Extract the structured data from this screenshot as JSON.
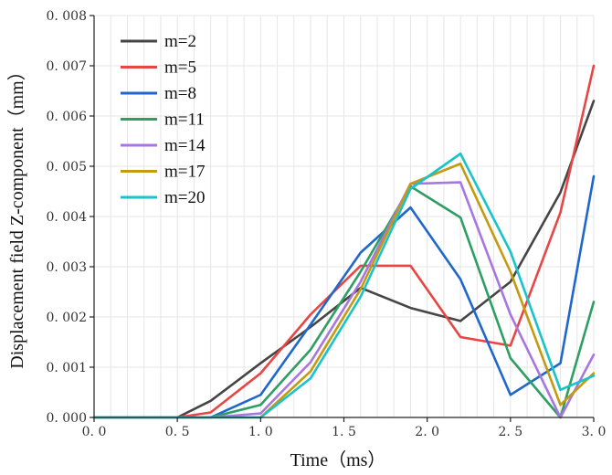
{
  "chart_data": {
    "type": "line",
    "title": "",
    "xlabel": "Time（ms）",
    "ylabel": "Displacement field  Z-component（mm）",
    "xlim": [
      0,
      3
    ],
    "ylim": [
      0,
      0.008
    ],
    "grid": true,
    "legend_position": "top-left",
    "x_ticks": [
      "0. 0",
      "0. 5",
      "1. 0",
      "1. 5",
      "2. 0",
      "2. 5",
      "3. 0"
    ],
    "x_tick_values": [
      0,
      0.5,
      1.0,
      1.5,
      2.0,
      2.5,
      3.0
    ],
    "y_ticks": [
      "0. 000",
      "0. 001",
      "0. 002",
      "0. 003",
      "0. 004",
      "0. 005",
      "0. 006",
      "0. 007",
      "0. 008"
    ],
    "y_tick_values": [
      0,
      0.001,
      0.002,
      0.003,
      0.004,
      0.005,
      0.006,
      0.007,
      0.008
    ],
    "x": [
      0,
      0.1,
      0.2,
      0.3,
      0.4,
      0.5,
      0.7,
      1.0,
      1.3,
      1.6,
      1.9,
      2.2,
      2.5,
      2.8,
      3.0
    ],
    "series": [
      {
        "name": "m=2",
        "color": "#454545",
        "values": [
          0,
          0,
          0,
          0,
          0,
          0,
          0.00033,
          0.00108,
          0.0018,
          0.00258,
          0.00218,
          0.00192,
          0.0027,
          0.00448,
          0.0063
        ]
      },
      {
        "name": "m=5",
        "color": "#e84545",
        "values": [
          0,
          0,
          0,
          0,
          0,
          0,
          0.0001,
          0.00088,
          0.00205,
          0.00302,
          0.00302,
          0.0016,
          0.00143,
          0.00408,
          0.007
        ]
      },
      {
        "name": "m=8",
        "color": "#1f67cc",
        "values": [
          0,
          0,
          0,
          0,
          0,
          0,
          0,
          0.00045,
          0.00185,
          0.00328,
          0.00418,
          0.00275,
          0.00045,
          0.00108,
          0.0048
        ]
      },
      {
        "name": "m=11",
        "color": "#2e9e62",
        "values": [
          0,
          0,
          0,
          0,
          0,
          0,
          0,
          0.00025,
          0.00135,
          0.0029,
          0.0046,
          0.00398,
          0.00118,
          0.0,
          0.0023
        ]
      },
      {
        "name": "m=14",
        "color": "#a776e0",
        "values": [
          0,
          0,
          0,
          0,
          0,
          0,
          0,
          8e-05,
          0.0011,
          0.0027,
          0.00465,
          0.00468,
          0.00205,
          0.0,
          0.00125
        ]
      },
      {
        "name": "m=17",
        "color": "#c49a10",
        "values": [
          0,
          0,
          0,
          0,
          0,
          0,
          0,
          0.0,
          0.00092,
          0.00255,
          0.00465,
          0.00505,
          0.0029,
          0.00025,
          0.00088
        ]
      },
      {
        "name": "m=20",
        "color": "#19c3c8",
        "values": [
          0,
          0,
          0,
          0,
          0,
          0,
          0,
          0.0,
          0.00078,
          0.0024,
          0.00455,
          0.00525,
          0.0033,
          0.00055,
          0.00083
        ]
      }
    ]
  }
}
